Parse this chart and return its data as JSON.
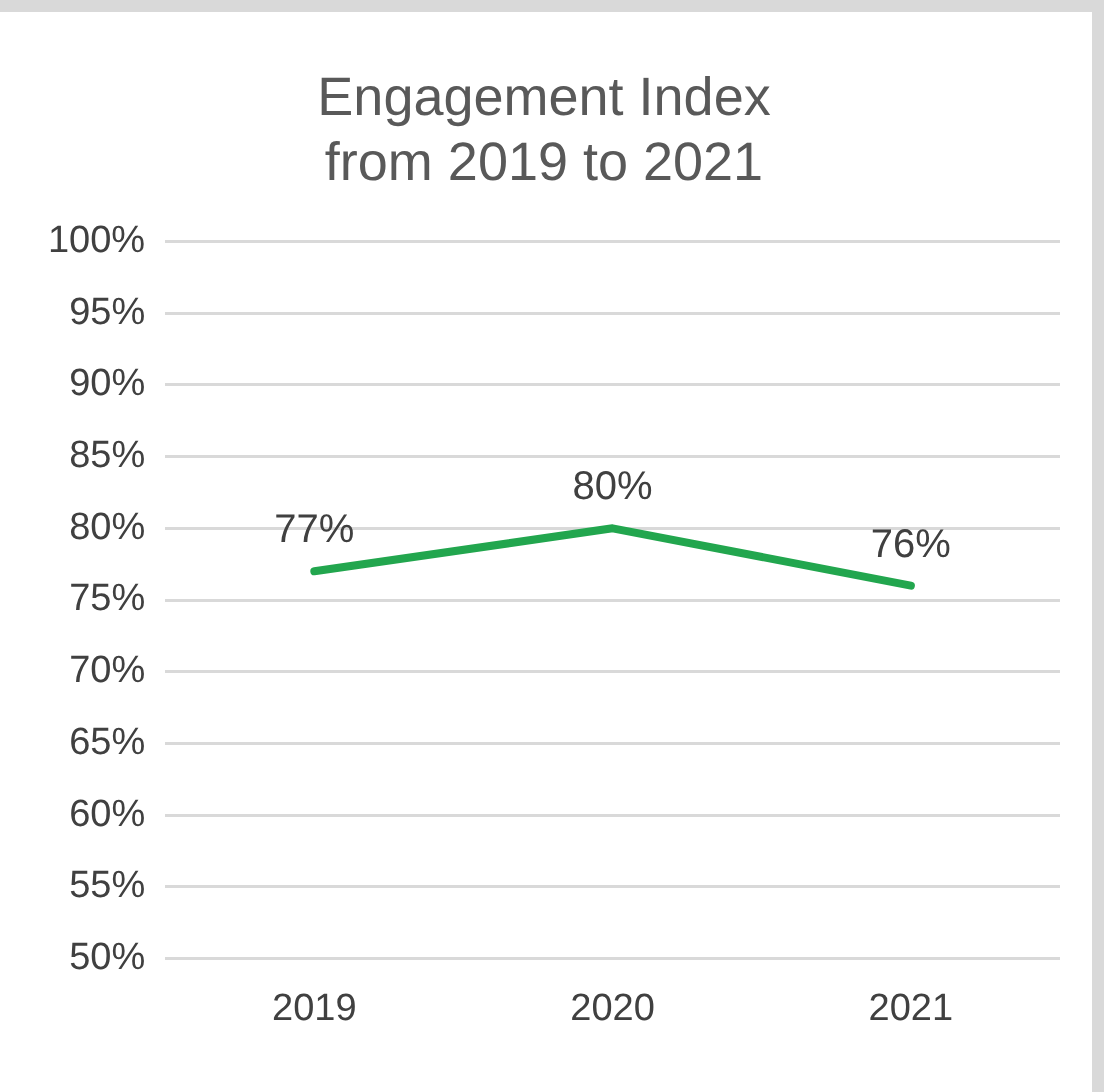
{
  "chart_data": {
    "type": "line",
    "title": "Engagement Index\nfrom 2019 to 2021",
    "categories": [
      "2019",
      "2020",
      "2021"
    ],
    "series": [
      {
        "color": "#22a64e",
        "values": [
          77,
          80,
          76
        ],
        "value_labels": [
          "77%",
          "80%",
          "76%"
        ]
      }
    ],
    "ylim": [
      50,
      100
    ],
    "yticks": [
      {
        "value": 50,
        "label": "50%"
      },
      {
        "value": 55,
        "label": "55%"
      },
      {
        "value": 60,
        "label": "60%"
      },
      {
        "value": 65,
        "label": "65%"
      },
      {
        "value": 70,
        "label": "70%"
      },
      {
        "value": 75,
        "label": "75%"
      },
      {
        "value": 80,
        "label": "80%"
      },
      {
        "value": 85,
        "label": "85%"
      },
      {
        "value": 90,
        "label": "90%"
      },
      {
        "value": 95,
        "label": "95%"
      },
      {
        "value": 100,
        "label": "100%"
      }
    ],
    "grid": "y",
    "legend": false,
    "marker": "none",
    "line_style": "solid"
  }
}
